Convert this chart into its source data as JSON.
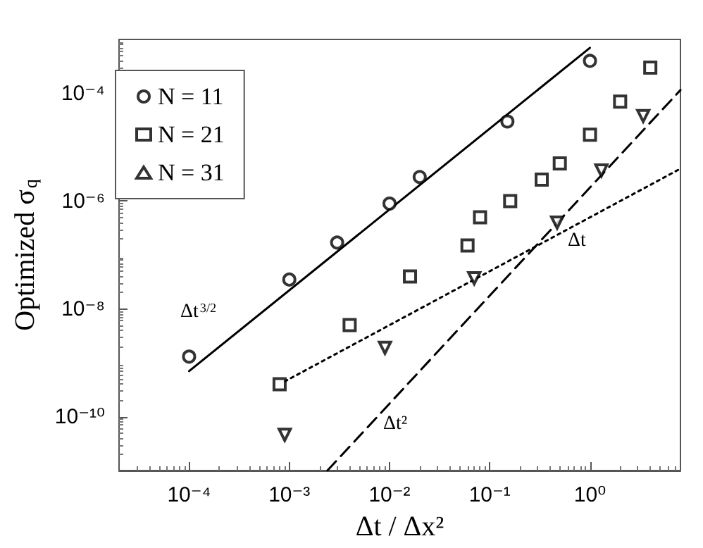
{
  "chart_data": {
    "type": "scatter",
    "xlabel": "Δt / Δx²",
    "ylabel": "Optimized σ$_{q}$",
    "log": "xy",
    "grid": false,
    "legend": "top left",
    "xlim": [
      2e-05,
      8
    ],
    "ylim": [
      1e-11,
      0.001
    ],
    "xticks": [
      {
        "value": 0.0001,
        "label": "10⁻⁴"
      },
      {
        "value": 0.001,
        "label": "10⁻³"
      },
      {
        "value": 0.01,
        "label": "10⁻²"
      },
      {
        "value": 0.1,
        "label": "10⁻¹"
      },
      {
        "value": 1,
        "label": "10⁰"
      }
    ],
    "yticks": [
      {
        "value": 1e-10,
        "label": "10⁻¹⁰"
      },
      {
        "value": 1e-08,
        "label": "10⁻⁸"
      },
      {
        "value": 1e-06,
        "label": "10⁻⁶"
      },
      {
        "value": 0.0001,
        "label": "10⁻⁴"
      }
    ],
    "series": [
      {
        "name": "N = 11",
        "marker": "circle",
        "color": "#000000",
        "x": [
          0.0001,
          0.001,
          0.003,
          0.01,
          0.02,
          0.15,
          1
        ],
        "values": [
          1.3e-09,
          3.5e-08,
          1.7e-07,
          9e-07,
          2.8e-06,
          3e-05,
          0.0004
        ]
      },
      {
        "name": "N = 21",
        "marker": "square",
        "color": "#000000",
        "x": [
          0.0008,
          0.004,
          0.016,
          0.06,
          0.08,
          0.16,
          0.33,
          0.5,
          1,
          2,
          4
        ],
        "values": [
          4e-10,
          5e-09,
          4e-08,
          1.5e-07,
          5e-07,
          1e-06,
          2.5e-06,
          5e-06,
          1.7e-05,
          7e-05,
          0.0003
        ]
      },
      {
        "name": "N = 31",
        "marker": "triangle",
        "color": "#000000",
        "x": [
          0.0009,
          0.009,
          0.07,
          0.47,
          1.3,
          3.4
        ],
        "values": [
          4.6e-11,
          1.9e-09,
          3.7e-08,
          4e-07,
          3.7e-06,
          3.8e-05
        ]
      },
      {
        "type": "line",
        "marker": "none",
        "line_style": "solid",
        "color": "#000000",
        "x": [
          0.0001,
          1
        ],
        "values": [
          7e-10,
          0.0007
        ]
      },
      {
        "type": "line",
        "marker": "none",
        "line_style": "dotted",
        "color": "#000000",
        "x": [
          0.0009,
          8
        ],
        "values": [
          4.5e-10,
          4e-06
        ]
      },
      {
        "type": "line",
        "marker": "none",
        "line_style": "dashed",
        "color": "#000000",
        "x": [
          0.0024,
          8
        ],
        "values": [
          1e-11,
          0.000115
        ]
      }
    ],
    "annotations": [
      "Δt$^{3/2}$",
      "Δt",
      "Δt²"
    ]
  }
}
